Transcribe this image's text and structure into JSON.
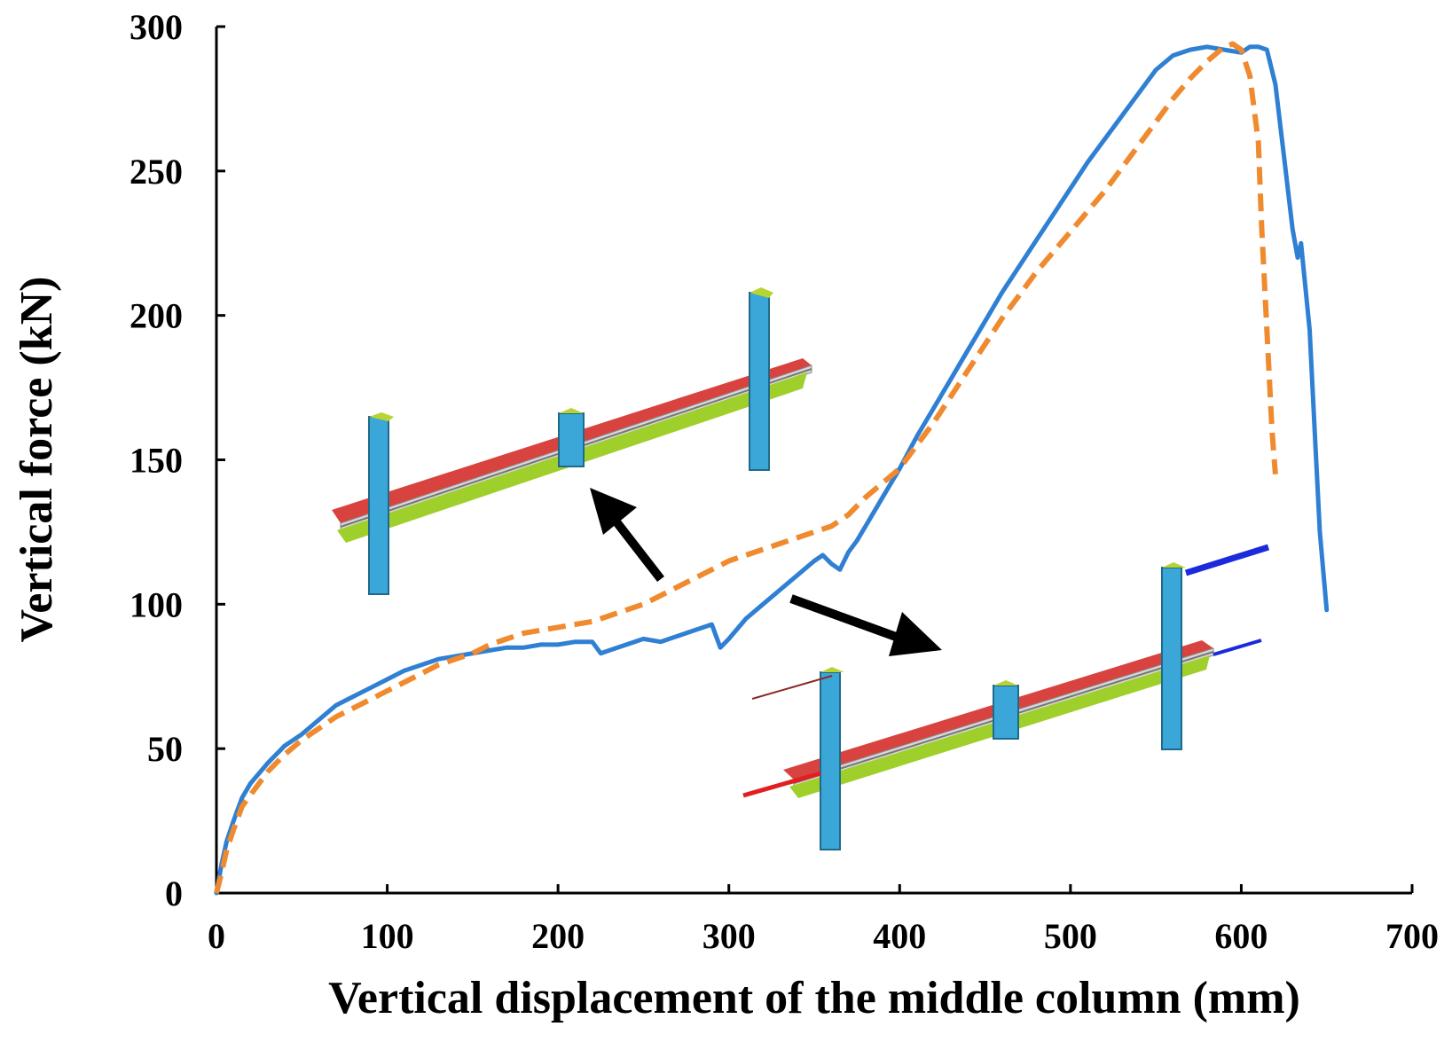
{
  "chart_data": {
    "type": "line",
    "title": "",
    "xlabel": "Vertical displacement of the middle column (mm)",
    "ylabel": "Vertical force (kN)",
    "xlim": [
      0,
      700
    ],
    "ylim": [
      0,
      300
    ],
    "xticks": [
      0,
      100,
      200,
      300,
      400,
      500,
      600,
      700
    ],
    "yticks": [
      0,
      50,
      100,
      150,
      200,
      250,
      300
    ],
    "grid": false,
    "series": [
      {
        "name": "solid",
        "color": "#2F7FD3",
        "style": "solid",
        "x": [
          0,
          3,
          6,
          10,
          15,
          20,
          30,
          40,
          50,
          60,
          70,
          80,
          90,
          100,
          110,
          120,
          130,
          140,
          150,
          160,
          170,
          180,
          190,
          200,
          210,
          220,
          225,
          230,
          240,
          250,
          260,
          270,
          280,
          290,
          295,
          300,
          310,
          320,
          330,
          340,
          350,
          355,
          360,
          365,
          370,
          375,
          380,
          390,
          400,
          410,
          420,
          430,
          440,
          450,
          460,
          470,
          480,
          490,
          500,
          510,
          520,
          530,
          540,
          550,
          560,
          570,
          580,
          590,
          600,
          605,
          610,
          615,
          620,
          625,
          630,
          633,
          635,
          640,
          643,
          646,
          650
        ],
        "y": [
          0,
          10,
          18,
          25,
          33,
          38,
          45,
          51,
          55,
          60,
          65,
          68,
          71,
          74,
          77,
          79,
          81,
          82,
          83,
          84,
          85,
          85,
          86,
          86,
          87,
          87,
          83,
          84,
          86,
          88,
          87,
          89,
          91,
          93,
          85,
          88,
          95,
          100,
          105,
          110,
          115,
          117,
          114,
          112,
          118,
          122,
          127,
          137,
          147,
          158,
          168,
          178,
          188,
          198,
          208,
          217,
          226,
          235,
          244,
          253,
          261,
          269,
          277,
          285,
          290,
          292,
          293,
          292,
          291,
          293,
          293,
          292,
          280,
          255,
          230,
          220,
          225,
          195,
          160,
          125,
          98
        ]
      },
      {
        "name": "dashed",
        "color": "#F08A2E",
        "style": "dashed",
        "x": [
          0,
          3,
          6,
          10,
          15,
          20,
          30,
          40,
          50,
          60,
          70,
          80,
          90,
          100,
          110,
          120,
          130,
          140,
          150,
          160,
          170,
          180,
          190,
          200,
          210,
          220,
          230,
          240,
          250,
          260,
          270,
          280,
          290,
          300,
          310,
          320,
          330,
          340,
          350,
          360,
          370,
          380,
          390,
          400,
          410,
          420,
          430,
          440,
          450,
          460,
          470,
          480,
          490,
          500,
          510,
          520,
          530,
          540,
          550,
          560,
          570,
          580,
          590,
          595,
          600,
          605,
          610,
          612,
          615,
          618,
          620
        ],
        "y": [
          0,
          7,
          15,
          22,
          30,
          34,
          42,
          48,
          53,
          57,
          61,
          64,
          67,
          70,
          73,
          76,
          79,
          81,
          83,
          86,
          88,
          90,
          91,
          92,
          93,
          94,
          96,
          98,
          100,
          103,
          106,
          109,
          112,
          115,
          117,
          119,
          121,
          123,
          125,
          127,
          131,
          137,
          142,
          147,
          155,
          163,
          172,
          181,
          190,
          199,
          207,
          215,
          222,
          229,
          236,
          243,
          251,
          259,
          267,
          275,
          282,
          288,
          293,
          294,
          292,
          283,
          260,
          230,
          195,
          160,
          145
        ]
      }
    ],
    "annotations": [
      "upper 3D beam–column model inset",
      "lower 3D beam–column model inset with boundary springs"
    ]
  }
}
